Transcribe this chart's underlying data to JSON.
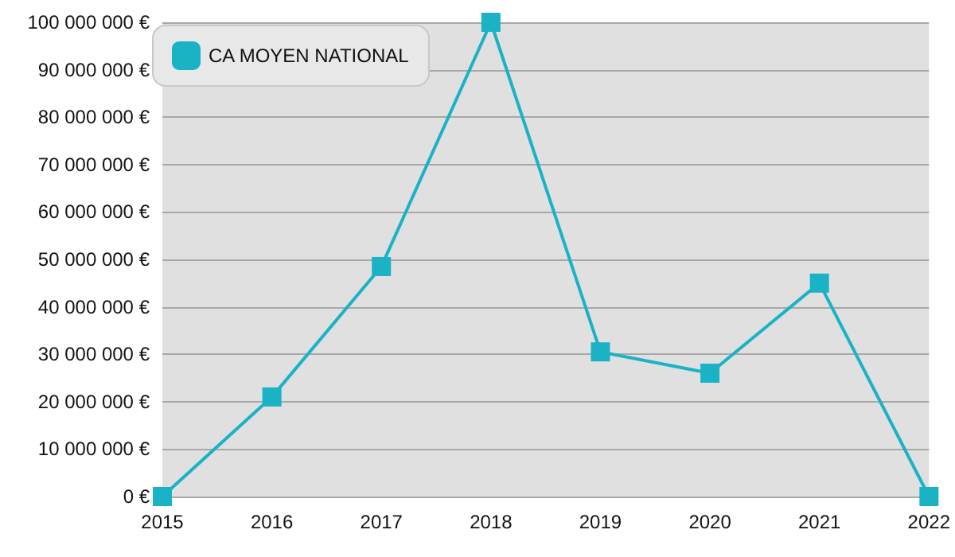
{
  "chart_data": {
    "type": "line",
    "categories": [
      "2015",
      "2016",
      "2017",
      "2018",
      "2019",
      "2020",
      "2021",
      "2022"
    ],
    "series": [
      {
        "name": "CA MOYEN NATIONAL",
        "color": "#1ab3c6",
        "values": [
          0,
          21000000,
          48500000,
          100000000,
          30500000,
          26000000,
          45000000,
          0
        ]
      }
    ],
    "ylim": [
      0,
      100000000
    ],
    "yticks": [
      {
        "value": 0,
        "label": "0 €"
      },
      {
        "value": 10000000,
        "label": "10 000 000 €"
      },
      {
        "value": 20000000,
        "label": "20 000 000 €"
      },
      {
        "value": 30000000,
        "label": "30 000 000 €"
      },
      {
        "value": 40000000,
        "label": "40 000 000 €"
      },
      {
        "value": 50000000,
        "label": "50 000 000 €"
      },
      {
        "value": 60000000,
        "label": "60 000 000 €"
      },
      {
        "value": 70000000,
        "label": "70 000 000 €"
      },
      {
        "value": 80000000,
        "label": "80 000 000 €"
      },
      {
        "value": 90000000,
        "label": "90 000 000 €"
      },
      {
        "value": 100000000,
        "label": "100 000 000 €"
      }
    ],
    "grid": "y",
    "legend": "top left",
    "marker": "square",
    "line_style": "solid"
  }
}
